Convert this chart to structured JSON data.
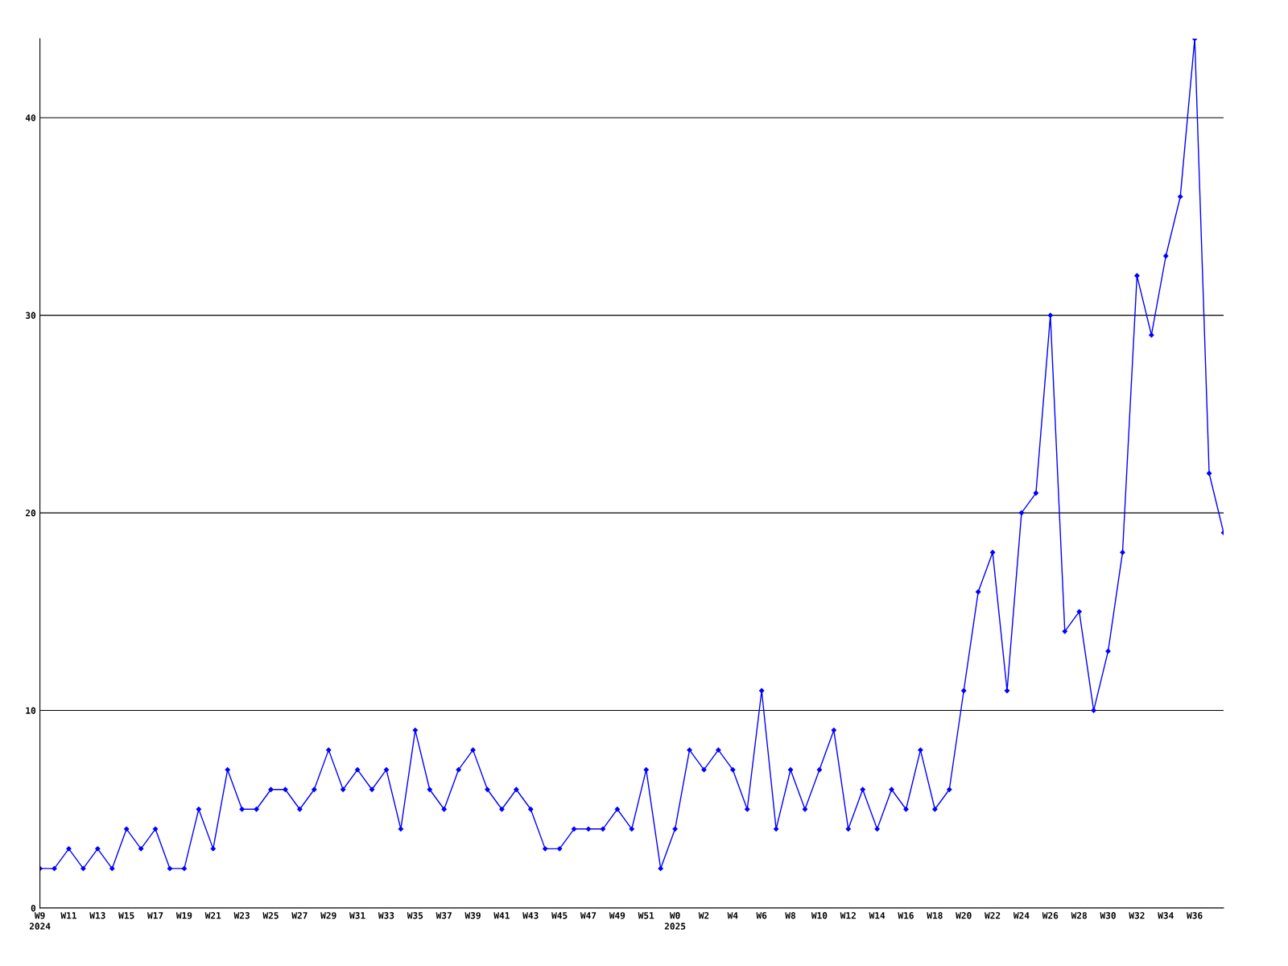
{
  "chart_data": {
    "type": "line",
    "categories": [
      "W9\n2024",
      null,
      "W11",
      null,
      "W13",
      null,
      "W15",
      null,
      "W17",
      null,
      "W19",
      null,
      "W21",
      null,
      "W23",
      null,
      "W25",
      null,
      "W27",
      null,
      "W29",
      null,
      "W31",
      null,
      "W33",
      null,
      "W35",
      null,
      "W37",
      null,
      "W39",
      null,
      "W41",
      null,
      "W43",
      null,
      "W45",
      null,
      "W47",
      null,
      "W49",
      null,
      "W51",
      null,
      "W0\n2025",
      null,
      "W2",
      null,
      "W4",
      null,
      "W6",
      null,
      "W8",
      null,
      "W10",
      null,
      "W12",
      null,
      "W14",
      null,
      "W16",
      null,
      "W18",
      null,
      "W20",
      null,
      "W22",
      null,
      "W24",
      null,
      "W26",
      null,
      "W28",
      null,
      "W30",
      null,
      "W32",
      null,
      "W34",
      null,
      "W36",
      null,
      null
    ],
    "series": [
      {
        "color": "#0000ff",
        "values": [
          2,
          2,
          3,
          2,
          3,
          2,
          4,
          3,
          4,
          2,
          2,
          5,
          3,
          7,
          5,
          5,
          6,
          6,
          5,
          6,
          8,
          6,
          7,
          6,
          7,
          4,
          9,
          6,
          5,
          7,
          8,
          6,
          5,
          6,
          5,
          3,
          3,
          4,
          4,
          4,
          5,
          4,
          7,
          2,
          4,
          8,
          7,
          8,
          7,
          5,
          11,
          4,
          7,
          5,
          7,
          9,
          4,
          6,
          4,
          6,
          5,
          8,
          5,
          6,
          11,
          16,
          18,
          11,
          20,
          21,
          30,
          14,
          15,
          10,
          13,
          18,
          32,
          29,
          33,
          36,
          44,
          22,
          19
        ]
      }
    ],
    "ylim": [
      0,
      44
    ],
    "yticks": [
      0,
      10,
      20,
      30,
      40
    ],
    "grid": "y",
    "marker": "diamond",
    "line_style": "solid",
    "legend": false
  }
}
